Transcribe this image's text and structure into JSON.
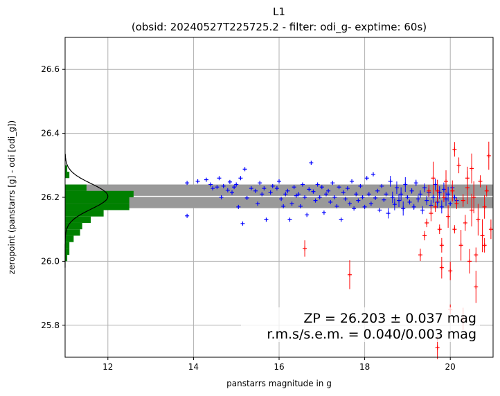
{
  "chart_data": {
    "type": "scatter",
    "title": "L1",
    "subtitle": "(obsid: 20240527T225725.2 - filter: odi_g- exptime: 60s)",
    "xlabel": "panstarrs magnitude in g",
    "ylabel": "zeropoint (panstarrs [g] - odi [odi_g])",
    "xlim": [
      11.0,
      21.0
    ],
    "ylim": [
      25.7,
      26.7
    ],
    "xticks": [
      "12",
      "14",
      "16",
      "18",
      "20"
    ],
    "yticks": [
      "25.8",
      "26.0",
      "26.2",
      "26.4",
      "26.6"
    ],
    "grid": true,
    "zp": 26.203,
    "band_halfwidth": 0.037,
    "annotation_line1": "ZP = 26.203 ± 0.037 mag",
    "annotation_line2": "r.m.s/s.e.m. = 0.040/0.003 mag",
    "colors": {
      "good": "#0000ff",
      "rejected": "#ff0000",
      "histogram": "#008000",
      "band": "#999999",
      "zp_line": "#ffffff",
      "gaussian": "#000000",
      "grid": "#b0b0b0"
    },
    "histogram": {
      "bin_edges": [
        25.98,
        26.0,
        26.02,
        26.04,
        26.06,
        26.08,
        26.1,
        26.12,
        26.14,
        26.16,
        26.18,
        26.2,
        26.22,
        26.24,
        26.26,
        26.28,
        26.3,
        26.32
      ],
      "mag_extent": [
        11.0,
        11.05,
        11.1,
        11.1,
        11.2,
        11.35,
        11.4,
        11.6,
        11.9,
        12.5,
        12.5,
        12.6,
        11.5,
        11.0,
        11.1,
        11.05,
        11.0
      ]
    },
    "gaussian_peak_mag": 12.0,
    "gaussian_sigma": 0.04,
    "series": [
      {
        "name": "",
        "role": "good",
        "points": [
          [
            13.85,
            26.245
          ],
          [
            13.85,
            26.142
          ],
          [
            14.1,
            26.25
          ],
          [
            14.3,
            26.255
          ],
          [
            14.4,
            26.24
          ],
          [
            14.45,
            26.228
          ],
          [
            14.55,
            26.232
          ],
          [
            14.6,
            26.26
          ],
          [
            14.65,
            26.2
          ],
          [
            14.7,
            26.235
          ],
          [
            14.8,
            26.222
          ],
          [
            14.85,
            26.248
          ],
          [
            14.9,
            26.215
          ],
          [
            14.95,
            26.232
          ],
          [
            15.0,
            26.24
          ],
          [
            15.05,
            26.17
          ],
          [
            15.1,
            26.26
          ],
          [
            15.15,
            26.118
          ],
          [
            15.2,
            26.288
          ],
          [
            15.25,
            26.198
          ],
          [
            15.35,
            26.228
          ],
          [
            15.45,
            26.22
          ],
          [
            15.5,
            26.18
          ],
          [
            15.55,
            26.245
          ],
          [
            15.6,
            26.21
          ],
          [
            15.65,
            26.228
          ],
          [
            15.7,
            26.13
          ],
          [
            15.8,
            26.215
          ],
          [
            15.85,
            26.235
          ],
          [
            15.95,
            26.228
          ],
          [
            16.0,
            26.25
          ],
          [
            16.05,
            26.195
          ],
          [
            16.1,
            26.172
          ],
          [
            16.15,
            26.21
          ],
          [
            16.2,
            26.22
          ],
          [
            16.25,
            26.13
          ],
          [
            16.3,
            26.18
          ],
          [
            16.35,
            26.232
          ],
          [
            16.4,
            26.205
          ],
          [
            16.45,
            26.21
          ],
          [
            16.5,
            26.172
          ],
          [
            16.55,
            26.24
          ],
          [
            16.6,
            26.2
          ],
          [
            16.65,
            26.145
          ],
          [
            16.7,
            26.225
          ],
          [
            16.75,
            26.308
          ],
          [
            16.8,
            26.218
          ],
          [
            16.85,
            26.19
          ],
          [
            16.9,
            26.24
          ],
          [
            16.95,
            26.2
          ],
          [
            17.0,
            26.232
          ],
          [
            17.05,
            26.152
          ],
          [
            17.1,
            26.21
          ],
          [
            17.15,
            26.22
          ],
          [
            17.2,
            26.185
          ],
          [
            17.25,
            26.245
          ],
          [
            17.3,
            26.2
          ],
          [
            17.35,
            26.172
          ],
          [
            17.4,
            26.232
          ],
          [
            17.45,
            26.13
          ],
          [
            17.5,
            26.215
          ],
          [
            17.55,
            26.195
          ],
          [
            17.6,
            26.228
          ],
          [
            17.65,
            26.18
          ],
          [
            17.7,
            26.25
          ],
          [
            17.75,
            26.165
          ],
          [
            17.8,
            26.21
          ],
          [
            17.85,
            26.19
          ],
          [
            17.9,
            26.235
          ],
          [
            17.95,
            26.2
          ],
          [
            18.0,
            26.17
          ],
          [
            18.05,
            26.26
          ],
          [
            18.1,
            26.21
          ],
          [
            18.15,
            26.18
          ],
          [
            18.2,
            26.272
          ],
          [
            18.25,
            26.198
          ],
          [
            18.3,
            26.22
          ],
          [
            18.35,
            26.16
          ],
          [
            18.4,
            26.235
          ],
          [
            18.45,
            26.192
          ],
          [
            18.5,
            26.21
          ],
          [
            18.55,
            26.15
          ],
          [
            18.6,
            26.25
          ],
          [
            18.65,
            26.2
          ],
          [
            18.7,
            26.178
          ],
          [
            18.75,
            26.23
          ],
          [
            18.8,
            26.19
          ],
          [
            18.85,
            26.21
          ],
          [
            18.9,
            26.165
          ],
          [
            18.95,
            26.24
          ],
          [
            19.0,
            26.2
          ],
          [
            19.05,
            26.185
          ],
          [
            19.1,
            26.22
          ],
          [
            19.15,
            26.17
          ],
          [
            19.2,
            26.245
          ],
          [
            19.25,
            26.195
          ],
          [
            19.3,
            26.21
          ],
          [
            19.35,
            26.16
          ],
          [
            19.4,
            26.23
          ],
          [
            19.45,
            26.19
          ],
          [
            19.5,
            26.215
          ],
          [
            19.55,
            26.175
          ],
          [
            19.6,
            26.2
          ],
          [
            19.65,
            26.24
          ],
          [
            19.7,
            26.185
          ],
          [
            19.75,
            26.215
          ],
          [
            19.8,
            26.17
          ],
          [
            19.85,
            26.225
          ],
          [
            19.9,
            26.195
          ],
          [
            19.95,
            26.21
          ],
          [
            20.0,
            26.18
          ],
          [
            20.05,
            26.23
          ],
          [
            20.1,
            26.2
          ],
          [
            20.15,
            26.19
          ]
        ]
      },
      {
        "name": "",
        "role": "rejected",
        "points": [
          [
            16.6,
            26.04
          ],
          [
            17.65,
            25.958
          ],
          [
            19.3,
            26.02
          ],
          [
            19.4,
            26.08
          ],
          [
            19.45,
            26.12
          ],
          [
            19.55,
            26.15
          ],
          [
            19.6,
            26.26
          ],
          [
            19.65,
            26.17
          ],
          [
            19.7,
            26.22
          ],
          [
            19.75,
            26.1
          ],
          [
            19.8,
            26.05
          ],
          [
            19.85,
            26.2
          ],
          [
            19.9,
            26.25
          ],
          [
            19.95,
            26.14
          ],
          [
            20.0,
            25.97
          ],
          [
            20.05,
            26.22
          ],
          [
            20.1,
            26.1
          ],
          [
            20.15,
            26.18
          ],
          [
            20.2,
            26.3
          ],
          [
            20.25,
            26.05
          ],
          [
            20.3,
            26.19
          ],
          [
            20.35,
            26.12
          ],
          [
            20.4,
            26.23
          ],
          [
            20.45,
            26.0
          ],
          [
            20.5,
            26.16
          ],
          [
            20.55,
            26.2
          ],
          [
            20.6,
            25.92
          ],
          [
            20.65,
            26.13
          ],
          [
            20.7,
            26.25
          ],
          [
            20.75,
            26.08
          ],
          [
            20.8,
            26.17
          ],
          [
            20.85,
            26.22
          ],
          [
            20.9,
            26.33
          ],
          [
            20.95,
            26.1
          ],
          [
            19.8,
            25.98
          ],
          [
            20.0,
            25.85
          ],
          [
            20.3,
            25.82
          ],
          [
            20.4,
            26.26
          ],
          [
            20.6,
            26.02
          ],
          [
            20.8,
            26.05
          ],
          [
            19.7,
            25.73
          ],
          [
            20.1,
            26.35
          ],
          [
            19.5,
            26.22
          ],
          [
            20.5,
            26.29
          ]
        ]
      }
    ]
  }
}
